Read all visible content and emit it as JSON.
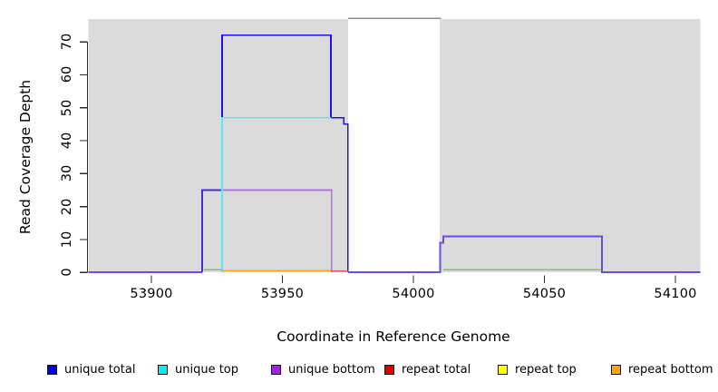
{
  "figure": {
    "x_axis": {
      "title": "Coordinate in Reference Genome",
      "ticks": [
        "53900",
        "53950",
        "54000",
        "54050",
        "54100"
      ]
    },
    "y_axis": {
      "title": "Read Coverage Depth",
      "ticks": [
        "0",
        "10",
        "20",
        "30",
        "40",
        "50",
        "60",
        "70"
      ]
    },
    "legend": [
      {
        "label": "unique total",
        "color": "#0000EE"
      },
      {
        "label": "unique top",
        "color": "#00EEEE"
      },
      {
        "label": "unique bottom",
        "color": "#A020F0"
      },
      {
        "label": "repeat total",
        "color": "#EE0000"
      },
      {
        "label": "repeat top",
        "color": "#FFFF00"
      },
      {
        "label": "repeat bottom",
        "color": "#FFA500"
      }
    ]
  },
  "chart_data": {
    "type": "line",
    "subtype": "step-coverage",
    "title": "",
    "xlabel": "Coordinate in Reference Genome",
    "ylabel": "Read Coverage Depth",
    "xlim": [
      53876,
      54110
    ],
    "ylim": [
      0,
      77
    ],
    "x_ticks": [
      53900,
      53950,
      54000,
      54050,
      54100
    ],
    "y_ticks": [
      0,
      10,
      20,
      30,
      40,
      50,
      60,
      70
    ],
    "grid": false,
    "legend_position": "bottom",
    "plot_bg": "#ffffff",
    "shaded_regions": [
      {
        "from": 53876,
        "to": 53975,
        "color": "#DBDBDB"
      },
      {
        "from": 54010,
        "to": 54109.5,
        "color": "#DBDBDB"
      }
    ],
    "gap_top_line": {
      "from": 53975,
      "to": 54010.5,
      "color": "#8C8C8C"
    },
    "series": [
      {
        "name": "unique total",
        "color": "#0000EE",
        "steps": [
          [
            53876,
            0
          ],
          [
            53919,
            25
          ],
          [
            53927,
            72
          ],
          [
            53968,
            47
          ],
          [
            53974,
            45
          ],
          [
            53975,
            0
          ],
          [
            54010,
            9
          ],
          [
            54011,
            11
          ],
          [
            54072,
            0
          ],
          [
            54110,
            0
          ]
        ]
      },
      {
        "name": "unique top",
        "color": "#00EEEE",
        "steps": [
          [
            53876,
            0
          ],
          [
            53927,
            47
          ],
          [
            53968,
            0
          ],
          [
            54110,
            0
          ]
        ]
      },
      {
        "name": "unique bottom",
        "color": "#A020F0",
        "steps": [
          [
            53876,
            0
          ],
          [
            53919,
            25
          ],
          [
            53969,
            0
          ],
          [
            54010,
            11
          ],
          [
            54072,
            0
          ],
          [
            54110,
            0
          ]
        ]
      },
      {
        "name": "repeat total",
        "color": "#EE0000",
        "steps": [
          [
            53876,
            0
          ],
          [
            54110,
            0
          ]
        ]
      },
      {
        "name": "repeat top",
        "color": "#FFFF00",
        "steps": [
          [
            53876,
            0
          ],
          [
            54110,
            0
          ]
        ]
      },
      {
        "name": "repeat bottom",
        "color": "#FFA500",
        "steps": [
          [
            53876,
            0
          ],
          [
            54110,
            0
          ]
        ]
      }
    ],
    "segments": [
      {
        "name": "unique-total-outline",
        "color": "#1A15E8",
        "width": 1.6,
        "points": [
          [
            53927,
            47
          ],
          [
            53927,
            72
          ],
          [
            53968.5,
            72
          ],
          [
            53968.5,
            47
          ],
          [
            53973.5,
            47
          ],
          [
            53973.5,
            45
          ],
          [
            53975,
            45
          ],
          [
            53975,
            0
          ]
        ]
      },
      {
        "name": "unique-total-low-step",
        "color": "#4B2BD0",
        "width": 1.8,
        "points": [
          [
            53919.4,
            0
          ],
          [
            53919.4,
            25
          ],
          [
            53927,
            25
          ]
        ]
      },
      {
        "name": "unique-bottom-outline",
        "color": "#B06FE8",
        "width": 1.6,
        "points": [
          [
            53927,
            25
          ],
          [
            53968.8,
            25
          ],
          [
            53968.8,
            0
          ]
        ]
      },
      {
        "name": "unique-top-outline",
        "color": "#5CE8F0",
        "width": 1.6,
        "points": [
          [
            53927,
            0
          ],
          [
            53927,
            47
          ],
          [
            53968.5,
            47
          ]
        ]
      },
      {
        "name": "repeat-bottom-zero-line",
        "color": "#FFA520",
        "width": 1.8,
        "points": [
          [
            53927,
            0.55
          ],
          [
            53968.5,
            0.55
          ]
        ]
      },
      {
        "name": "repeat-total-zero-line",
        "color": "#E0506A",
        "width": 1.6,
        "points": [
          [
            53968.5,
            0.38
          ],
          [
            53975,
            0.38
          ]
        ]
      },
      {
        "name": "green-zero-line-left",
        "color": "#7CC67C",
        "width": 1.6,
        "points": [
          [
            53920,
            0.8
          ],
          [
            53927,
            0.8
          ]
        ]
      },
      {
        "name": "green-zero-line-right",
        "color": "#7CC67C",
        "width": 1.6,
        "points": [
          [
            54011.5,
            0.8
          ],
          [
            54072,
            0.8
          ]
        ]
      },
      {
        "name": "baseline-left",
        "color": "#5E50E8",
        "width": 2,
        "points": [
          [
            53876,
            0
          ],
          [
            53919.4,
            0
          ]
        ]
      },
      {
        "name": "baseline-and-right-box",
        "color": "#5E50E8",
        "width": 2,
        "points": [
          [
            53975,
            0
          ],
          [
            54010.2,
            0
          ],
          [
            54010.2,
            9
          ],
          [
            54011.5,
            9
          ],
          [
            54011.5,
            11
          ],
          [
            54072,
            11
          ],
          [
            54072,
            0
          ],
          [
            54109.5,
            0
          ]
        ]
      }
    ]
  }
}
